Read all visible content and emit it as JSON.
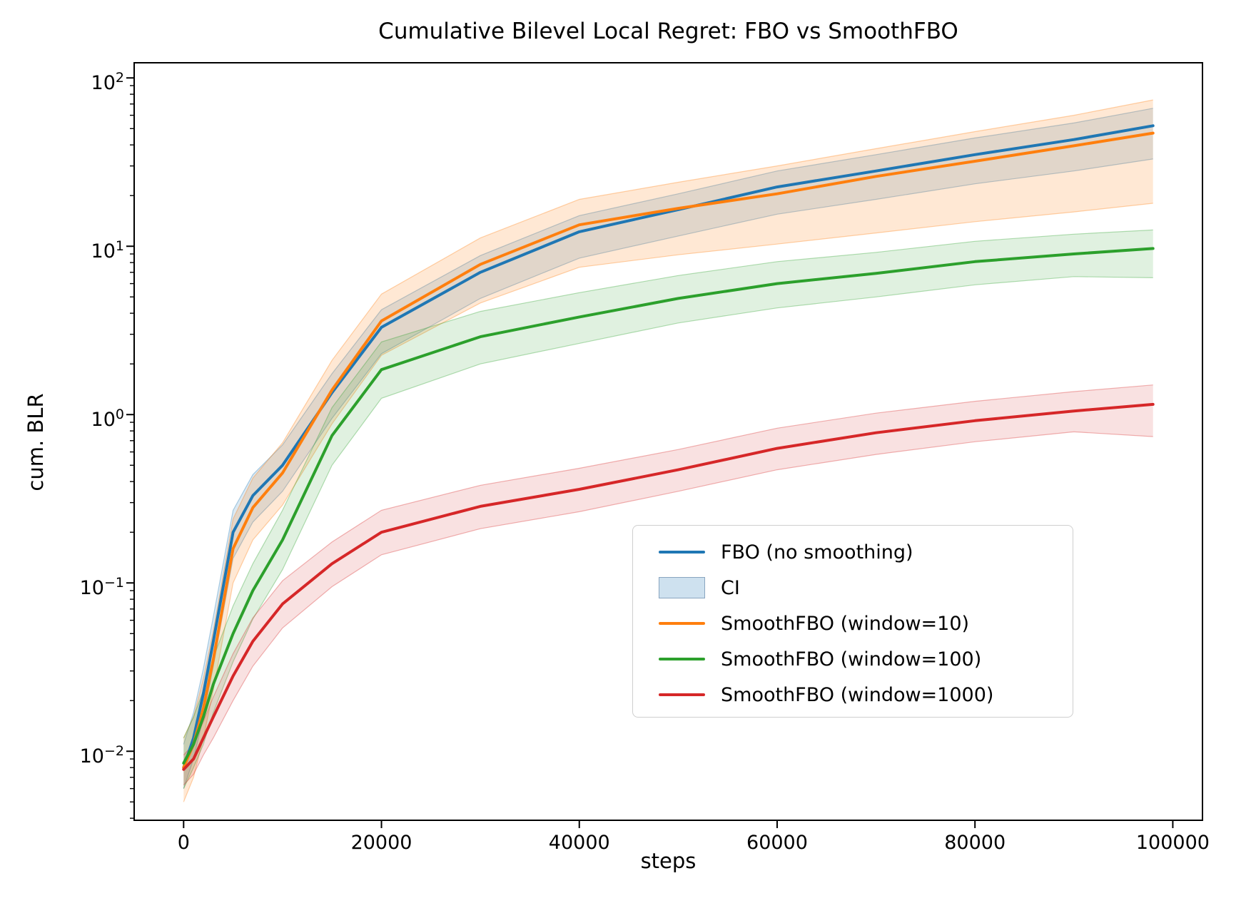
{
  "chart_data": {
    "type": "line",
    "title": "Cumulative Bilevel Local Regret: FBO vs SmoothFBO",
    "xlabel": "steps",
    "ylabel": "cum. BLR",
    "yscale": "log",
    "grid": false,
    "legend_position": "lower right",
    "xlim": [
      -5000,
      103000
    ],
    "ylog_range": [
      -2.41,
      2.09
    ],
    "xticks": [
      0,
      20000,
      40000,
      60000,
      80000,
      100000
    ],
    "xtick_labels": [
      "0",
      "20000",
      "40000",
      "60000",
      "80000",
      "100000"
    ],
    "ytick_exponents": [
      {
        "base": "10",
        "exp": "2"
      },
      {
        "base": "10",
        "exp": "1"
      },
      {
        "base": "10",
        "exp": "0"
      },
      {
        "base": "10",
        "exp": "−1"
      },
      {
        "base": "10",
        "exp": "−2"
      }
    ],
    "x": [
      0,
      1000,
      2000,
      3000,
      5000,
      7000,
      10000,
      15000,
      20000,
      30000,
      40000,
      50000,
      60000,
      70000,
      80000,
      90000,
      98000
    ],
    "series": [
      {
        "name": "FBO (no smoothing)",
        "color": "#1f77b4",
        "fill": "rgba(31,119,180,0.16)",
        "edge": "rgba(31,119,180,0.35)",
        "values": [
          0.008,
          0.012,
          0.022,
          0.045,
          0.2,
          0.33,
          0.5,
          1.35,
          3.3,
          7.0,
          12.2,
          16.5,
          22.5,
          28,
          35,
          43,
          52
        ],
        "ci_hi": [
          0.011,
          0.017,
          0.031,
          0.063,
          0.27,
          0.44,
          0.66,
          1.75,
          4.2,
          8.8,
          15.2,
          20.5,
          28,
          35,
          44,
          54,
          66
        ],
        "ci_lo": [
          0.006,
          0.009,
          0.016,
          0.032,
          0.14,
          0.23,
          0.35,
          0.95,
          2.3,
          4.9,
          8.5,
          11.5,
          15.5,
          19,
          23.5,
          28,
          33
        ]
      },
      {
        "name": "SmoothFBO (window=10)",
        "color": "#ff7f0e",
        "fill": "rgba(255,127,14,0.18)",
        "edge": "rgba(255,127,14,0.35)",
        "values": [
          0.008,
          0.011,
          0.018,
          0.035,
          0.16,
          0.28,
          0.45,
          1.4,
          3.6,
          7.8,
          13.4,
          16.8,
          20.5,
          26,
          32,
          39.5,
          47
        ],
        "ci_hi": [
          0.012,
          0.016,
          0.027,
          0.052,
          0.24,
          0.42,
          0.68,
          2.1,
          5.2,
          11.2,
          19.0,
          24,
          30,
          38,
          48,
          60,
          74
        ],
        "ci_lo": [
          0.005,
          0.007,
          0.012,
          0.023,
          0.1,
          0.18,
          0.29,
          0.88,
          2.25,
          4.6,
          7.5,
          8.9,
          10.3,
          12.0,
          14.0,
          16.0,
          18.0
        ]
      },
      {
        "name": "SmoothFBO (window=100)",
        "color": "#2ca02c",
        "fill": "rgba(44,160,44,0.15)",
        "edge": "rgba(44,160,44,0.35)",
        "values": [
          0.0085,
          0.011,
          0.016,
          0.025,
          0.05,
          0.09,
          0.18,
          0.75,
          1.85,
          2.9,
          3.8,
          4.9,
          6.0,
          6.9,
          8.1,
          9.0,
          9.7
        ],
        "ci_hi": [
          0.012,
          0.016,
          0.023,
          0.036,
          0.073,
          0.13,
          0.27,
          1.1,
          2.7,
          4.1,
          5.3,
          6.7,
          8.1,
          9.2,
          10.7,
          11.8,
          12.5
        ],
        "ci_lo": [
          0.006,
          0.008,
          0.011,
          0.017,
          0.034,
          0.061,
          0.12,
          0.5,
          1.25,
          2.0,
          2.65,
          3.5,
          4.3,
          5.0,
          5.9,
          6.6,
          6.5
        ]
      },
      {
        "name": "SmoothFBO (window=1000)",
        "color": "#d62728",
        "fill": "rgba(214,39,40,0.14)",
        "edge": "rgba(214,39,40,0.35)",
        "values": [
          0.0078,
          0.009,
          0.012,
          0.016,
          0.028,
          0.045,
          0.075,
          0.13,
          0.2,
          0.285,
          0.36,
          0.47,
          0.63,
          0.78,
          0.92,
          1.05,
          1.15
        ],
        "ci_hi": [
          0.0095,
          0.011,
          0.015,
          0.021,
          0.038,
          0.062,
          0.103,
          0.175,
          0.27,
          0.38,
          0.48,
          0.62,
          0.83,
          1.02,
          1.2,
          1.37,
          1.5
        ],
        "ci_lo": [
          0.0063,
          0.0073,
          0.0095,
          0.012,
          0.02,
          0.032,
          0.054,
          0.095,
          0.147,
          0.21,
          0.265,
          0.35,
          0.47,
          0.58,
          0.69,
          0.79,
          0.74
        ]
      }
    ],
    "legend": {
      "items": [
        {
          "label": "FBO (no smoothing)",
          "swatch": "line",
          "color": "#1f77b4"
        },
        {
          "label": "CI",
          "swatch": "patch",
          "fill": "rgba(31,119,180,0.22)",
          "edge": "rgba(120,150,180,0.8)"
        },
        {
          "label": "SmoothFBO (window=10)",
          "swatch": "line",
          "color": "#ff7f0e"
        },
        {
          "label": "SmoothFBO (window=100)",
          "swatch": "line",
          "color": "#2ca02c"
        },
        {
          "label": "SmoothFBO (window=1000)",
          "swatch": "line",
          "color": "#d62728"
        }
      ]
    }
  }
}
